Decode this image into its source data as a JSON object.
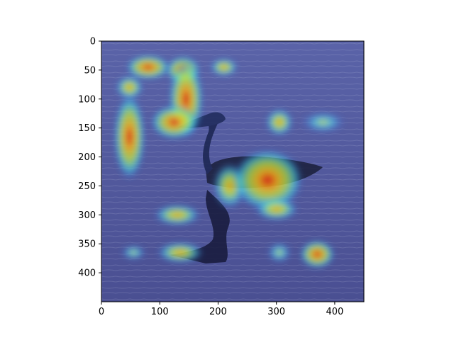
{
  "chart_data": {
    "type": "heatmap",
    "title": "",
    "xlabel": "",
    "ylabel": "",
    "xlim": [
      0,
      450
    ],
    "ylim": [
      450,
      0
    ],
    "y_inverted": true,
    "grid": false,
    "legend": "none",
    "colormap": "jet",
    "overlay_alpha": 0.5,
    "background_image": "grebe-bird-swimming-on-water-with-reflection",
    "x_ticks": [
      0,
      100,
      200,
      300,
      400
    ],
    "y_ticks": [
      0,
      50,
      100,
      150,
      200,
      250,
      300,
      350,
      400
    ],
    "hotspots": [
      {
        "x": 80,
        "y": 45,
        "rx": 28,
        "ry": 16,
        "intensity": 0.85
      },
      {
        "x": 140,
        "y": 50,
        "rx": 22,
        "ry": 18,
        "intensity": 0.85
      },
      {
        "x": 210,
        "y": 45,
        "rx": 18,
        "ry": 12,
        "intensity": 0.55
      },
      {
        "x": 48,
        "y": 80,
        "rx": 18,
        "ry": 16,
        "intensity": 0.7
      },
      {
        "x": 145,
        "y": 100,
        "rx": 22,
        "ry": 50,
        "intensity": 0.9
      },
      {
        "x": 125,
        "y": 140,
        "rx": 30,
        "ry": 22,
        "intensity": 0.95
      },
      {
        "x": 48,
        "y": 165,
        "rx": 20,
        "ry": 55,
        "intensity": 0.85
      },
      {
        "x": 305,
        "y": 140,
        "rx": 18,
        "ry": 18,
        "intensity": 0.55
      },
      {
        "x": 380,
        "y": 140,
        "rx": 28,
        "ry": 14,
        "intensity": 0.45
      },
      {
        "x": 220,
        "y": 250,
        "rx": 22,
        "ry": 30,
        "intensity": 0.6
      },
      {
        "x": 285,
        "y": 240,
        "rx": 45,
        "ry": 40,
        "intensity": 1.0
      },
      {
        "x": 300,
        "y": 290,
        "rx": 28,
        "ry": 15,
        "intensity": 0.55
      },
      {
        "x": 130,
        "y": 300,
        "rx": 30,
        "ry": 14,
        "intensity": 0.6
      },
      {
        "x": 55,
        "y": 365,
        "rx": 16,
        "ry": 10,
        "intensity": 0.4
      },
      {
        "x": 135,
        "y": 365,
        "rx": 30,
        "ry": 14,
        "intensity": 0.7
      },
      {
        "x": 305,
        "y": 365,
        "rx": 16,
        "ry": 14,
        "intensity": 0.5
      },
      {
        "x": 370,
        "y": 368,
        "rx": 22,
        "ry": 18,
        "intensity": 0.85
      }
    ]
  }
}
